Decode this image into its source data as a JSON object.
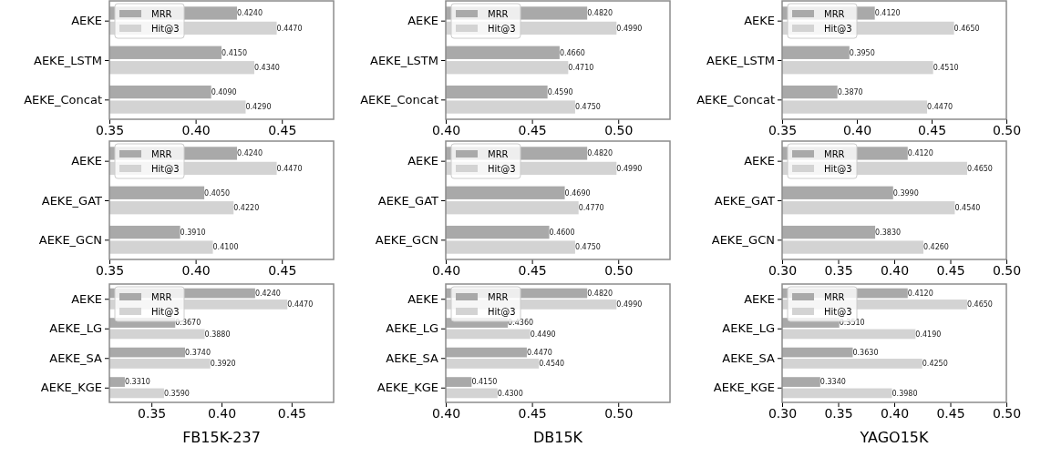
{
  "chart_data": [
    {
      "type": "bar",
      "orientation": "horizontal",
      "categories": [
        "AEKE",
        "AEKE_LSTM",
        "AEKE_Concat"
      ],
      "xlim": [
        0.35,
        0.48
      ],
      "xticks": [
        {
          "value": 0.35,
          "label": "0.35"
        },
        {
          "value": 0.4,
          "label": "0.40"
        },
        {
          "value": 0.45,
          "label": "0.45"
        }
      ],
      "legend": "top left",
      "series": [
        {
          "name": "MRR",
          "color": "#a9a9a9",
          "values": [
            0.424,
            0.415,
            0.409
          ],
          "value_labels": [
            "0.4240",
            "0.4150",
            "0.4090"
          ]
        },
        {
          "name": "Hit@3",
          "color": "#d3d3d3",
          "values": [
            0.447,
            0.434,
            0.429
          ],
          "value_labels": [
            "0.4470",
            "0.4340",
            "0.4290"
          ]
        }
      ]
    },
    {
      "type": "bar",
      "orientation": "horizontal",
      "categories": [
        "AEKE",
        "AEKE_LSTM",
        "AEKE_Concat"
      ],
      "xlim": [
        0.4,
        0.53
      ],
      "xticks": [
        {
          "value": 0.4,
          "label": "0.40"
        },
        {
          "value": 0.45,
          "label": "0.45"
        },
        {
          "value": 0.5,
          "label": "0.50"
        }
      ],
      "legend": "top left",
      "series": [
        {
          "name": "MRR",
          "color": "#a9a9a9",
          "values": [
            0.482,
            0.466,
            0.459
          ],
          "value_labels": [
            "0.4820",
            "0.4660",
            "0.4590"
          ]
        },
        {
          "name": "Hit@3",
          "color": "#d3d3d3",
          "values": [
            0.499,
            0.471,
            0.475
          ],
          "value_labels": [
            "0.4990",
            "0.4710",
            "0.4750"
          ]
        }
      ]
    },
    {
      "type": "bar",
      "orientation": "horizontal",
      "categories": [
        "AEKE",
        "AEKE_LSTM",
        "AEKE_Concat"
      ],
      "xlim": [
        0.35,
        0.5
      ],
      "xticks": [
        {
          "value": 0.35,
          "label": "0.35"
        },
        {
          "value": 0.4,
          "label": "0.40"
        },
        {
          "value": 0.45,
          "label": "0.45"
        },
        {
          "value": 0.5,
          "label": "0.50"
        }
      ],
      "legend": "top left",
      "series": [
        {
          "name": "MRR",
          "color": "#a9a9a9",
          "values": [
            0.412,
            0.395,
            0.387
          ],
          "value_labels": [
            "0.4120",
            "0.3950",
            "0.3870"
          ]
        },
        {
          "name": "Hit@3",
          "color": "#d3d3d3",
          "values": [
            0.465,
            0.451,
            0.447
          ],
          "value_labels": [
            "0.4650",
            "0.4510",
            "0.4470"
          ]
        }
      ]
    },
    {
      "type": "bar",
      "orientation": "horizontal",
      "categories": [
        "AEKE",
        "AEKE_GAT",
        "AEKE_GCN"
      ],
      "xlim": [
        0.35,
        0.48
      ],
      "xticks": [
        {
          "value": 0.35,
          "label": "0.35"
        },
        {
          "value": 0.4,
          "label": "0.40"
        },
        {
          "value": 0.45,
          "label": "0.45"
        }
      ],
      "legend": "top left",
      "series": [
        {
          "name": "MRR",
          "color": "#a9a9a9",
          "values": [
            0.424,
            0.405,
            0.391
          ],
          "value_labels": [
            "0.4240",
            "0.4050",
            "0.3910"
          ]
        },
        {
          "name": "Hit@3",
          "color": "#d3d3d3",
          "values": [
            0.447,
            0.422,
            0.41
          ],
          "value_labels": [
            "0.4470",
            "0.4220",
            "0.4100"
          ]
        }
      ]
    },
    {
      "type": "bar",
      "orientation": "horizontal",
      "categories": [
        "AEKE",
        "AEKE_GAT",
        "AEKE_GCN"
      ],
      "xlim": [
        0.4,
        0.53
      ],
      "xticks": [
        {
          "value": 0.4,
          "label": "0.40"
        },
        {
          "value": 0.45,
          "label": "0.45"
        },
        {
          "value": 0.5,
          "label": "0.50"
        }
      ],
      "legend": "top left",
      "series": [
        {
          "name": "MRR",
          "color": "#a9a9a9",
          "values": [
            0.482,
            0.469,
            0.46
          ],
          "value_labels": [
            "0.4820",
            "0.4690",
            "0.4600"
          ]
        },
        {
          "name": "Hit@3",
          "color": "#d3d3d3",
          "values": [
            0.499,
            0.477,
            0.475
          ],
          "value_labels": [
            "0.4990",
            "0.4770",
            "0.4750"
          ]
        }
      ]
    },
    {
      "type": "bar",
      "orientation": "horizontal",
      "categories": [
        "AEKE",
        "AEKE_GAT",
        "AEKE_GCN"
      ],
      "xlim": [
        0.3,
        0.5
      ],
      "xticks": [
        {
          "value": 0.3,
          "label": "0.30"
        },
        {
          "value": 0.35,
          "label": "0.35"
        },
        {
          "value": 0.4,
          "label": "0.40"
        },
        {
          "value": 0.45,
          "label": "0.45"
        },
        {
          "value": 0.5,
          "label": "0.50"
        }
      ],
      "legend": "top left",
      "series": [
        {
          "name": "MRR",
          "color": "#a9a9a9",
          "values": [
            0.412,
            0.399,
            0.383
          ],
          "value_labels": [
            "0.4120",
            "0.3990",
            "0.3830"
          ]
        },
        {
          "name": "Hit@3",
          "color": "#d3d3d3",
          "values": [
            0.465,
            0.454,
            0.426
          ],
          "value_labels": [
            "0.4650",
            "0.4540",
            "0.4260"
          ]
        }
      ]
    },
    {
      "type": "bar",
      "orientation": "horizontal",
      "xlabel": "FB15K-237",
      "categories": [
        "AEKE",
        "AEKE_LG",
        "AEKE_SA",
        "AEKE_KGE"
      ],
      "xlim": [
        0.32,
        0.48
      ],
      "xticks": [
        {
          "value": 0.35,
          "label": "0.35"
        },
        {
          "value": 0.4,
          "label": "0.40"
        },
        {
          "value": 0.45,
          "label": "0.45"
        }
      ],
      "legend": "top left",
      "series": [
        {
          "name": "MRR",
          "color": "#a9a9a9",
          "values": [
            0.424,
            0.367,
            0.374,
            0.331
          ],
          "value_labels": [
            "0.4240",
            "0.3670",
            "0.3740",
            "0.3310"
          ]
        },
        {
          "name": "Hit@3",
          "color": "#d3d3d3",
          "values": [
            0.447,
            0.388,
            0.392,
            0.359
          ],
          "value_labels": [
            "0.4470",
            "0.3880",
            "0.3920",
            "0.3590"
          ]
        }
      ]
    },
    {
      "type": "bar",
      "orientation": "horizontal",
      "xlabel": "DB15K",
      "categories": [
        "AEKE",
        "AEKE_LG",
        "AEKE_SA",
        "AEKE_KGE"
      ],
      "xlim": [
        0.4,
        0.53
      ],
      "xticks": [
        {
          "value": 0.4,
          "label": "0.40"
        },
        {
          "value": 0.45,
          "label": "0.45"
        },
        {
          "value": 0.5,
          "label": "0.50"
        }
      ],
      "legend": "top left",
      "series": [
        {
          "name": "MRR",
          "color": "#a9a9a9",
          "values": [
            0.482,
            0.436,
            0.447,
            0.415
          ],
          "value_labels": [
            "0.4820",
            "0.4360",
            "0.4470",
            "0.4150"
          ]
        },
        {
          "name": "Hit@3",
          "color": "#d3d3d3",
          "values": [
            0.499,
            0.449,
            0.454,
            0.43
          ],
          "value_labels": [
            "0.4990",
            "0.4490",
            "0.4540",
            "0.4300"
          ]
        }
      ]
    },
    {
      "type": "bar",
      "orientation": "horizontal",
      "xlabel": "YAGO15K",
      "categories": [
        "AEKE",
        "AEKE_LG",
        "AEKE_SA",
        "AEKE_KGE"
      ],
      "xlim": [
        0.3,
        0.5
      ],
      "xticks": [
        {
          "value": 0.3,
          "label": "0.30"
        },
        {
          "value": 0.35,
          "label": "0.35"
        },
        {
          "value": 0.4,
          "label": "0.40"
        },
        {
          "value": 0.45,
          "label": "0.45"
        },
        {
          "value": 0.5,
          "label": "0.50"
        }
      ],
      "legend": "top left",
      "series": [
        {
          "name": "MRR",
          "color": "#a9a9a9",
          "values": [
            0.412,
            0.351,
            0.363,
            0.334
          ],
          "value_labels": [
            "0.4120",
            "0.3510",
            "0.3630",
            "0.3340"
          ]
        },
        {
          "name": "Hit@3",
          "color": "#d3d3d3",
          "values": [
            0.465,
            0.419,
            0.425,
            0.398
          ],
          "value_labels": [
            "0.4650",
            "0.4190",
            "0.4250",
            "0.3980"
          ]
        }
      ]
    }
  ]
}
